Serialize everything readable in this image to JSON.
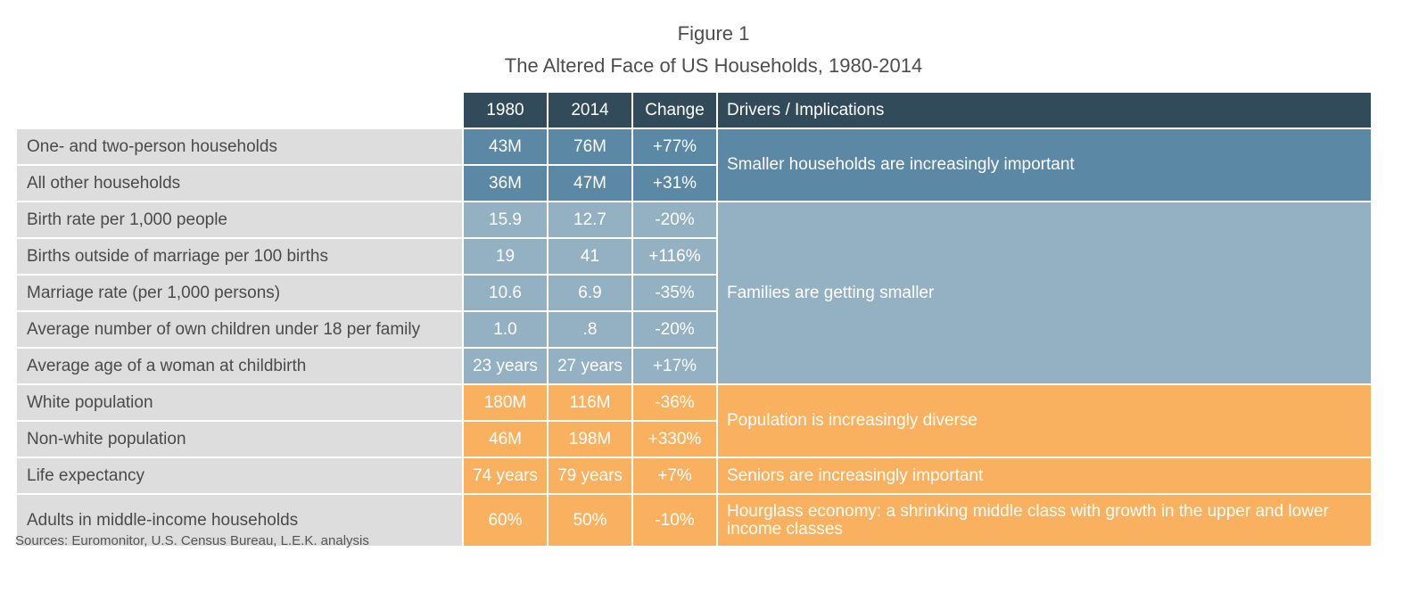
{
  "figure_label": "Figure 1",
  "title": "The Altered Face of US Households, 1980-2014",
  "sources": "Sources: Euromonitor, U.S. Census Bureau, L.E.K. analysis",
  "colors": {
    "header": "#324b5b",
    "label_bg": "#dddddd",
    "group_households": "#5b89a5",
    "group_families": "#94b0c3",
    "group_population": "#f9b15f"
  },
  "chart_data": {
    "type": "table",
    "title": "The Altered Face of US Households, 1980-2014",
    "columns": [
      "1980",
      "2014",
      "Change",
      "Drivers / Implications"
    ],
    "rows": [
      {
        "label": "One- and two-person households",
        "v1980": "43M",
        "v2014": "76M",
        "change": "+77%"
      },
      {
        "label": "All other households",
        "v1980": "36M",
        "v2014": "47M",
        "change": "+31%"
      },
      {
        "label": "Birth rate per 1,000 people",
        "v1980": "15.9",
        "v2014": "12.7",
        "change": "-20%"
      },
      {
        "label": "Births outside of marriage per 100 births",
        "v1980": "19",
        "v2014": "41",
        "change": "+116%"
      },
      {
        "label": "Marriage rate (per 1,000 persons)",
        "v1980": "10.6",
        "v2014": "6.9",
        "change": "-35%"
      },
      {
        "label": "Average number of own children under 18 per family",
        "v1980": "1.0",
        "v2014": ".8",
        "change": "-20%"
      },
      {
        "label": "Average age of a woman at childbirth",
        "v1980": "23 years",
        "v2014": "27 years",
        "change": "+17%"
      },
      {
        "label": "White population",
        "v1980": "180M",
        "v2014": "116M",
        "change": "-36%"
      },
      {
        "label": "Non-white population",
        "v1980": "46M",
        "v2014": "198M",
        "change": "+330%"
      },
      {
        "label": "Life expectancy",
        "v1980": "74 years",
        "v2014": "79 years",
        "change": "+7%"
      },
      {
        "label": "Adults in middle-income households",
        "v1980": "60%",
        "v2014": "50%",
        "change": "-10%"
      }
    ],
    "drivers": [
      "Smaller households are increasingly important",
      "Families are getting smaller",
      "Population is increasingly diverse",
      "Seniors are increasingly important",
      "Hourglass economy: a shrinking middle class with growth in the upper and lower income classes"
    ]
  }
}
